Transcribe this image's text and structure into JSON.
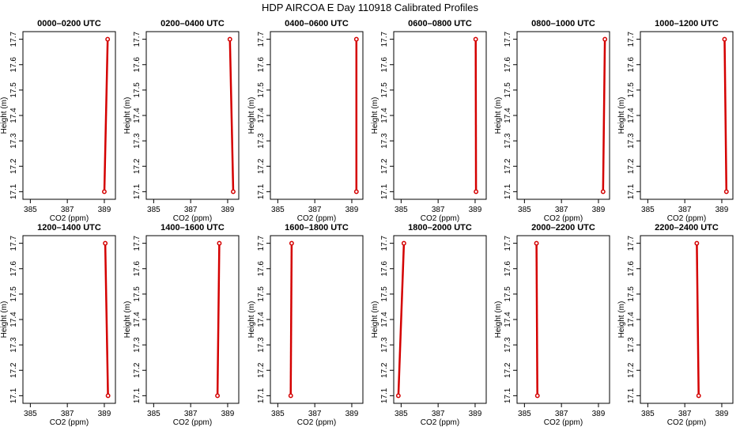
{
  "figure": {
    "title": "HDP AIRCOA E  Day 110918  Calibrated Profiles"
  },
  "chart_data": [
    {
      "type": "line",
      "title": "0000–0200 UTC",
      "xlabel": "CO2 (ppm)",
      "ylabel": "Height (m)",
      "xlim": [
        384.6,
        389.6
      ],
      "ylim": [
        17.07,
        17.73
      ],
      "xticks": [
        "385",
        "387",
        "389"
      ],
      "yticks": [
        "17.1",
        "17.2",
        "17.3",
        "17.4",
        "17.5",
        "17.6",
        "17.7"
      ],
      "x": [
        389.0,
        389.18
      ],
      "y": [
        17.1,
        17.7
      ],
      "color": "#d40000"
    },
    {
      "type": "line",
      "title": "0200–0400 UTC",
      "xlabel": "CO2 (ppm)",
      "ylabel": "Height (m)",
      "xlim": [
        384.6,
        389.6
      ],
      "ylim": [
        17.07,
        17.73
      ],
      "xticks": [
        "385",
        "387",
        "389"
      ],
      "yticks": [
        "17.1",
        "17.2",
        "17.3",
        "17.4",
        "17.5",
        "17.6",
        "17.7"
      ],
      "x": [
        389.3,
        389.12
      ],
      "y": [
        17.1,
        17.7
      ],
      "color": "#d40000"
    },
    {
      "type": "line",
      "title": "0400–0600 UTC",
      "xlabel": "CO2 (ppm)",
      "ylabel": "Height (m)",
      "xlim": [
        384.6,
        389.6
      ],
      "ylim": [
        17.07,
        17.73
      ],
      "xticks": [
        "385",
        "387",
        "389"
      ],
      "yticks": [
        "17.1",
        "17.2",
        "17.3",
        "17.4",
        "17.5",
        "17.6",
        "17.7"
      ],
      "x": [
        389.25,
        389.25
      ],
      "y": [
        17.1,
        17.7
      ],
      "color": "#d40000"
    },
    {
      "type": "line",
      "title": "0600–0800 UTC",
      "xlabel": "CO2 (ppm)",
      "ylabel": "Height (m)",
      "xlim": [
        384.6,
        389.6
      ],
      "ylim": [
        17.07,
        17.73
      ],
      "xticks": [
        "385",
        "387",
        "389"
      ],
      "yticks": [
        "17.1",
        "17.2",
        "17.3",
        "17.4",
        "17.5",
        "17.6",
        "17.7"
      ],
      "x": [
        389.05,
        389.03
      ],
      "y": [
        17.1,
        17.7
      ],
      "color": "#d40000"
    },
    {
      "type": "line",
      "title": "0800–1000 UTC",
      "xlabel": "CO2 (ppm)",
      "ylabel": "Height (m)",
      "xlim": [
        384.6,
        389.6
      ],
      "ylim": [
        17.07,
        17.73
      ],
      "xticks": [
        "385",
        "387",
        "389"
      ],
      "yticks": [
        "17.1",
        "17.2",
        "17.3",
        "17.4",
        "17.5",
        "17.6",
        "17.7"
      ],
      "x": [
        389.25,
        389.35
      ],
      "y": [
        17.1,
        17.7
      ],
      "color": "#d40000"
    },
    {
      "type": "line",
      "title": "1000–1200 UTC",
      "xlabel": "CO2 (ppm)",
      "ylabel": "Height (m)",
      "xlim": [
        384.6,
        389.6
      ],
      "ylim": [
        17.07,
        17.73
      ],
      "xticks": [
        "385",
        "387",
        "389"
      ],
      "yticks": [
        "17.1",
        "17.2",
        "17.3",
        "17.4",
        "17.5",
        "17.6",
        "17.7"
      ],
      "x": [
        389.25,
        389.15
      ],
      "y": [
        17.1,
        17.7
      ],
      "color": "#d40000"
    },
    {
      "type": "line",
      "title": "1200–1400 UTC",
      "xlabel": "CO2 (ppm)",
      "ylabel": "Height (m)",
      "xlim": [
        384.6,
        389.6
      ],
      "ylim": [
        17.07,
        17.73
      ],
      "xticks": [
        "385",
        "387",
        "389"
      ],
      "yticks": [
        "17.1",
        "17.2",
        "17.3",
        "17.4",
        "17.5",
        "17.6",
        "17.7"
      ],
      "x": [
        389.2,
        389.05
      ],
      "y": [
        17.1,
        17.7
      ],
      "color": "#d40000"
    },
    {
      "type": "line",
      "title": "1400–1600 UTC",
      "xlabel": "CO2 (ppm)",
      "ylabel": "Height (m)",
      "xlim": [
        384.6,
        389.6
      ],
      "ylim": [
        17.07,
        17.73
      ],
      "xticks": [
        "385",
        "387",
        "389"
      ],
      "yticks": [
        "17.1",
        "17.2",
        "17.3",
        "17.4",
        "17.5",
        "17.6",
        "17.7"
      ],
      "x": [
        388.45,
        388.55
      ],
      "y": [
        17.1,
        17.7
      ],
      "color": "#d40000"
    },
    {
      "type": "line",
      "title": "1600–1800 UTC",
      "xlabel": "CO2 (ppm)",
      "ylabel": "Height (m)",
      "xlim": [
        384.6,
        389.6
      ],
      "ylim": [
        17.07,
        17.73
      ],
      "xticks": [
        "385",
        "387",
        "389"
      ],
      "yticks": [
        "17.1",
        "17.2",
        "17.3",
        "17.4",
        "17.5",
        "17.6",
        "17.7"
      ],
      "x": [
        385.7,
        385.75
      ],
      "y": [
        17.1,
        17.7
      ],
      "color": "#d40000"
    },
    {
      "type": "line",
      "title": "1800–2000 UTC",
      "xlabel": "CO2 (ppm)",
      "ylabel": "Height (m)",
      "xlim": [
        384.6,
        389.6
      ],
      "ylim": [
        17.07,
        17.73
      ],
      "xticks": [
        "385",
        "387",
        "389"
      ],
      "yticks": [
        "17.1",
        "17.2",
        "17.3",
        "17.4",
        "17.5",
        "17.6",
        "17.7"
      ],
      "x": [
        384.85,
        385.15
      ],
      "y": [
        17.1,
        17.7
      ],
      "color": "#d40000"
    },
    {
      "type": "line",
      "title": "2000–2200 UTC",
      "xlabel": "CO2 (ppm)",
      "ylabel": "Height (m)",
      "xlim": [
        384.6,
        389.6
      ],
      "ylim": [
        17.07,
        17.73
      ],
      "xticks": [
        "385",
        "387",
        "389"
      ],
      "yticks": [
        "17.1",
        "17.2",
        "17.3",
        "17.4",
        "17.5",
        "17.6",
        "17.7"
      ],
      "x": [
        385.7,
        385.65
      ],
      "y": [
        17.1,
        17.7
      ],
      "color": "#d40000"
    },
    {
      "type": "line",
      "title": "2200–2400 UTC",
      "xlabel": "CO2 (ppm)",
      "ylabel": "Height (m)",
      "xlim": [
        384.6,
        389.6
      ],
      "ylim": [
        17.07,
        17.73
      ],
      "xticks": [
        "385",
        "387",
        "389"
      ],
      "yticks": [
        "17.1",
        "17.2",
        "17.3",
        "17.4",
        "17.5",
        "17.6",
        "17.7"
      ],
      "x": [
        387.75,
        387.65
      ],
      "y": [
        17.1,
        17.7
      ],
      "color": "#d40000"
    }
  ]
}
